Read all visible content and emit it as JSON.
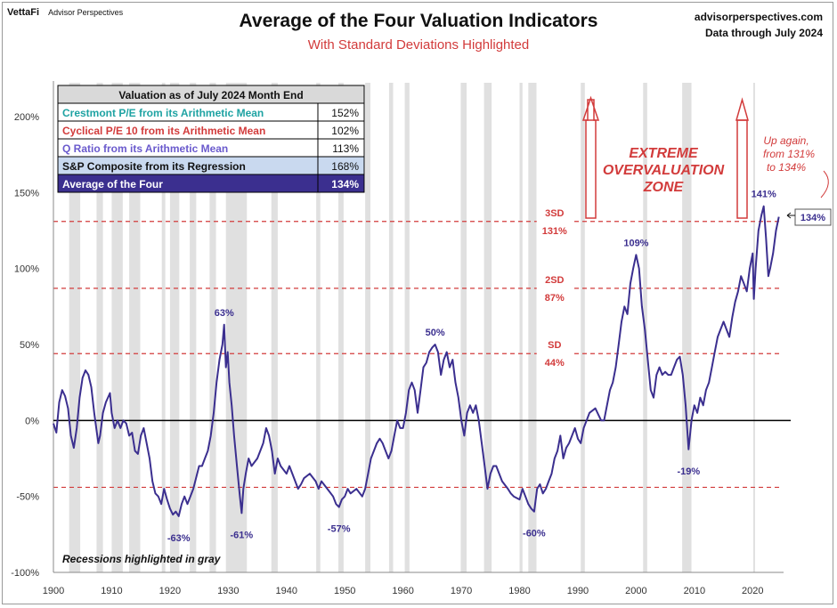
{
  "header": {
    "brand": "VettaFi",
    "brand_sub": "Advisor Perspectives",
    "title": "Average of the Four Valuation Indicators",
    "subtitle": "With Standard Deviations Highlighted",
    "source_site": "advisorperspectives.com",
    "source_date": "Data through July 2024"
  },
  "table": {
    "header": "Valuation as of July 2024 Month End",
    "rows": [
      {
        "label": "Crestmont P/E from its Arithmetic Mean",
        "value": "152%",
        "color": "#1fa3a3",
        "bg": "#ffffff"
      },
      {
        "label": "Cyclical P/E 10 from its Arithmetic Mean",
        "value": "102%",
        "color": "#d23b3b",
        "bg": "#ffffff"
      },
      {
        "label": "Q Ratio from its Arithmetic Mean",
        "value": "113%",
        "color": "#6a5acd",
        "bg": "#ffffff"
      },
      {
        "label": "S&P Composite from its Regression",
        "value": "168%",
        "color": "#111111",
        "bg": "#c9d9ef"
      },
      {
        "label": "Average of the Four",
        "value": "134%",
        "color": "#ffffff",
        "bg": "#3b2f8f"
      }
    ]
  },
  "annotations": {
    "zone": [
      "EXTREME",
      "OVERVALUATION",
      "ZONE"
    ],
    "up_again": [
      "Up again,",
      "from 131%",
      "to 134%"
    ],
    "recessions_note": "Recessions highlighted in gray",
    "current_label": "134%"
  },
  "colors": {
    "line": "#3b2f8f",
    "sd": "#d23b3b",
    "recession": "#e0e0e0",
    "zero": "#000000",
    "grid_text": "#333333"
  },
  "chart_data": {
    "type": "line",
    "xlim": [
      1900,
      2025
    ],
    "ylim": [
      -100,
      200
    ],
    "x_ticks": [
      "1900",
      "1910",
      "1920",
      "1930",
      "1940",
      "1950",
      "1960",
      "1970",
      "1980",
      "1990",
      "2000",
      "2010",
      "2020"
    ],
    "y_ticks": [
      "200%",
      "150%",
      "100%",
      "50%",
      "0%",
      "-50%",
      "-100%"
    ],
    "sd_lines": [
      {
        "y": 131,
        "label1": "3SD",
        "label2": "131%"
      },
      {
        "y": 87,
        "label1": "2SD",
        "label2": "87%"
      },
      {
        "y": 44,
        "label1": "SD",
        "label2": "44%"
      },
      {
        "y": -44,
        "label1": "",
        "label2": ""
      }
    ],
    "recessions": [
      [
        1902.7,
        1904.6
      ],
      [
        1907.4,
        1908.5
      ],
      [
        1910.0,
        1911.9
      ],
      [
        1913.0,
        1914.9
      ],
      [
        1918.6,
        1919.2
      ],
      [
        1920.0,
        1921.6
      ],
      [
        1923.4,
        1924.5
      ],
      [
        1926.8,
        1927.9
      ],
      [
        1929.6,
        1933.2
      ],
      [
        1937.4,
        1938.5
      ],
      [
        1945.1,
        1945.8
      ],
      [
        1948.9,
        1949.8
      ],
      [
        1953.5,
        1954.4
      ],
      [
        1957.6,
        1958.3
      ],
      [
        1960.3,
        1961.1
      ],
      [
        1969.9,
        1970.9
      ],
      [
        1973.9,
        1975.2
      ],
      [
        1980.0,
        1980.5
      ],
      [
        1981.5,
        1982.9
      ],
      [
        1990.5,
        1991.2
      ],
      [
        2001.2,
        2001.9
      ],
      [
        2007.9,
        2009.5
      ],
      [
        2020.1,
        2020.4
      ]
    ],
    "series": [
      {
        "values": [
          [
            1900,
            -2
          ],
          [
            1900.5,
            -8
          ],
          [
            1901,
            12
          ],
          [
            1901.5,
            20
          ],
          [
            1902,
            16
          ],
          [
            1902.5,
            8
          ],
          [
            1903,
            -10
          ],
          [
            1903.5,
            -18
          ],
          [
            1904,
            -5
          ],
          [
            1904.5,
            15
          ],
          [
            1905,
            28
          ],
          [
            1905.5,
            33
          ],
          [
            1906,
            30
          ],
          [
            1906.5,
            22
          ],
          [
            1907,
            5
          ],
          [
            1907.7,
            -15
          ],
          [
            1908,
            -10
          ],
          [
            1908.5,
            5
          ],
          [
            1909,
            12
          ],
          [
            1909.7,
            18
          ],
          [
            1910,
            5
          ],
          [
            1910.5,
            -5
          ],
          [
            1911,
            0
          ],
          [
            1911.5,
            -5
          ],
          [
            1912,
            0
          ],
          [
            1912.5,
            -2
          ],
          [
            1913,
            -10
          ],
          [
            1913.5,
            -8
          ],
          [
            1914,
            -20
          ],
          [
            1914.5,
            -22
          ],
          [
            1915,
            -10
          ],
          [
            1915.5,
            -5
          ],
          [
            1916,
            -15
          ],
          [
            1916.5,
            -25
          ],
          [
            1917,
            -40
          ],
          [
            1917.5,
            -48
          ],
          [
            1918,
            -50
          ],
          [
            1918.5,
            -55
          ],
          [
            1919,
            -45
          ],
          [
            1919.5,
            -52
          ],
          [
            1920,
            -58
          ],
          [
            1920.5,
            -62
          ],
          [
            1921,
            -60
          ],
          [
            1921.5,
            -63
          ],
          [
            1922,
            -55
          ],
          [
            1922.5,
            -50
          ],
          [
            1923,
            -55
          ],
          [
            1923.5,
            -50
          ],
          [
            1924,
            -45
          ],
          [
            1925,
            -30
          ],
          [
            1925.5,
            -30
          ],
          [
            1926,
            -25
          ],
          [
            1926.5,
            -20
          ],
          [
            1927,
            -10
          ],
          [
            1927.5,
            5
          ],
          [
            1928,
            25
          ],
          [
            1928.5,
            40
          ],
          [
            1929,
            50
          ],
          [
            1929.3,
            63
          ],
          [
            1929.6,
            35
          ],
          [
            1929.9,
            45
          ],
          [
            1930.2,
            25
          ],
          [
            1930.6,
            10
          ],
          [
            1931,
            -10
          ],
          [
            1931.5,
            -30
          ],
          [
            1932,
            -50
          ],
          [
            1932.3,
            -61
          ],
          [
            1932.6,
            -45
          ],
          [
            1933,
            -35
          ],
          [
            1933.5,
            -25
          ],
          [
            1934,
            -30
          ],
          [
            1935,
            -25
          ],
          [
            1935.5,
            -20
          ],
          [
            1936,
            -15
          ],
          [
            1936.5,
            -5
          ],
          [
            1937,
            -10
          ],
          [
            1937.5,
            -20
          ],
          [
            1938,
            -35
          ],
          [
            1938.5,
            -25
          ],
          [
            1939,
            -30
          ],
          [
            1940,
            -35
          ],
          [
            1940.5,
            -30
          ],
          [
            1941,
            -35
          ],
          [
            1942,
            -45
          ],
          [
            1942.5,
            -42
          ],
          [
            1943,
            -38
          ],
          [
            1944,
            -35
          ],
          [
            1945,
            -40
          ],
          [
            1945.5,
            -45
          ],
          [
            1946,
            -40
          ],
          [
            1947,
            -45
          ],
          [
            1948,
            -50
          ],
          [
            1948.5,
            -55
          ],
          [
            1949,
            -57
          ],
          [
            1949.5,
            -52
          ],
          [
            1950,
            -50
          ],
          [
            1950.5,
            -45
          ],
          [
            1951,
            -48
          ],
          [
            1952,
            -45
          ],
          [
            1953,
            -50
          ],
          [
            1953.5,
            -45
          ],
          [
            1954,
            -35
          ],
          [
            1954.5,
            -25
          ],
          [
            1955,
            -20
          ],
          [
            1955.5,
            -15
          ],
          [
            1956,
            -12
          ],
          [
            1956.5,
            -15
          ],
          [
            1957,
            -20
          ],
          [
            1957.5,
            -25
          ],
          [
            1958,
            -20
          ],
          [
            1958.5,
            -10
          ],
          [
            1959,
            0
          ],
          [
            1959.5,
            -5
          ],
          [
            1960,
            -5
          ],
          [
            1960.5,
            5
          ],
          [
            1961,
            20
          ],
          [
            1961.5,
            25
          ],
          [
            1962,
            20
          ],
          [
            1962.5,
            5
          ],
          [
            1963,
            20
          ],
          [
            1963.5,
            35
          ],
          [
            1964,
            38
          ],
          [
            1964.5,
            45
          ],
          [
            1965,
            48
          ],
          [
            1965.5,
            50
          ],
          [
            1966,
            45
          ],
          [
            1966.5,
            30
          ],
          [
            1967,
            40
          ],
          [
            1967.5,
            45
          ],
          [
            1968,
            35
          ],
          [
            1968.5,
            40
          ],
          [
            1969,
            25
          ],
          [
            1969.5,
            15
          ],
          [
            1970,
            0
          ],
          [
            1970.5,
            -10
          ],
          [
            1971,
            5
          ],
          [
            1971.5,
            10
          ],
          [
            1972,
            5
          ],
          [
            1972.5,
            10
          ],
          [
            1973,
            0
          ],
          [
            1973.5,
            -15
          ],
          [
            1974,
            -30
          ],
          [
            1974.5,
            -45
          ],
          [
            1975,
            -35
          ],
          [
            1975.5,
            -30
          ],
          [
            1976,
            -30
          ],
          [
            1976.5,
            -35
          ],
          [
            1977,
            -40
          ],
          [
            1978,
            -45
          ],
          [
            1978.5,
            -48
          ],
          [
            1979,
            -50
          ],
          [
            1980,
            -52
          ],
          [
            1980.5,
            -45
          ],
          [
            1981,
            -50
          ],
          [
            1981.5,
            -55
          ],
          [
            1982,
            -58
          ],
          [
            1982.5,
            -60
          ],
          [
            1983,
            -45
          ],
          [
            1983.5,
            -42
          ],
          [
            1984,
            -48
          ],
          [
            1984.5,
            -45
          ],
          [
            1985,
            -40
          ],
          [
            1985.5,
            -35
          ],
          [
            1986,
            -25
          ],
          [
            1986.5,
            -20
          ],
          [
            1987,
            -10
          ],
          [
            1987.5,
            -25
          ],
          [
            1988,
            -18
          ],
          [
            1988.5,
            -15
          ],
          [
            1989,
            -10
          ],
          [
            1989.5,
            -5
          ],
          [
            1990,
            -12
          ],
          [
            1990.5,
            -15
          ],
          [
            1991,
            -5
          ],
          [
            1991.5,
            0
          ],
          [
            1992,
            5
          ],
          [
            1993,
            8
          ],
          [
            1994,
            0
          ],
          [
            1994.5,
            0
          ],
          [
            1995,
            10
          ],
          [
            1995.5,
            20
          ],
          [
            1996,
            25
          ],
          [
            1996.5,
            35
          ],
          [
            1997,
            50
          ],
          [
            1997.5,
            65
          ],
          [
            1998,
            75
          ],
          [
            1998.5,
            70
          ],
          [
            1999,
            90
          ],
          [
            1999.5,
            100
          ],
          [
            2000,
            109
          ],
          [
            2000.5,
            100
          ],
          [
            2001,
            75
          ],
          [
            2001.5,
            60
          ],
          [
            2002,
            40
          ],
          [
            2002.5,
            20
          ],
          [
            2003,
            15
          ],
          [
            2003.5,
            30
          ],
          [
            2004,
            35
          ],
          [
            2004.5,
            30
          ],
          [
            2005,
            32
          ],
          [
            2005.5,
            30
          ],
          [
            2006,
            30
          ],
          [
            2006.5,
            35
          ],
          [
            2007,
            40
          ],
          [
            2007.5,
            42
          ],
          [
            2008,
            30
          ],
          [
            2008.5,
            10
          ],
          [
            2009,
            -19
          ],
          [
            2009.5,
            0
          ],
          [
            2010,
            10
          ],
          [
            2010.5,
            5
          ],
          [
            2011,
            15
          ],
          [
            2011.5,
            10
          ],
          [
            2012,
            20
          ],
          [
            2012.5,
            25
          ],
          [
            2013,
            35
          ],
          [
            2013.5,
            45
          ],
          [
            2014,
            55
          ],
          [
            2014.5,
            60
          ],
          [
            2015,
            65
          ],
          [
            2015.5,
            60
          ],
          [
            2016,
            55
          ],
          [
            2016.5,
            68
          ],
          [
            2017,
            78
          ],
          [
            2017.5,
            85
          ],
          [
            2018,
            95
          ],
          [
            2018.5,
            90
          ],
          [
            2019,
            85
          ],
          [
            2019.5,
            100
          ],
          [
            2020,
            110
          ],
          [
            2020.2,
            80
          ],
          [
            2020.5,
            100
          ],
          [
            2021,
            125
          ],
          [
            2021.5,
            135
          ],
          [
            2021.9,
            141
          ],
          [
            2022.3,
            120
          ],
          [
            2022.7,
            95
          ],
          [
            2023,
            100
          ],
          [
            2023.5,
            110
          ],
          [
            2024,
            125
          ],
          [
            2024.5,
            134
          ]
        ]
      }
    ],
    "labels": [
      {
        "x": 1929.3,
        "y": 63,
        "text": "63%",
        "pos": "above"
      },
      {
        "x": 1921.5,
        "y": -63,
        "text": "-63%",
        "pos": "below"
      },
      {
        "x": 1932.3,
        "y": -61,
        "text": "-61%",
        "pos": "below"
      },
      {
        "x": 1949,
        "y": -57,
        "text": "-57%",
        "pos": "below"
      },
      {
        "x": 1965.5,
        "y": 50,
        "text": "50%",
        "pos": "above"
      },
      {
        "x": 1982.5,
        "y": -60,
        "text": "-60%",
        "pos": "below"
      },
      {
        "x": 2000,
        "y": 109,
        "text": "109%",
        "pos": "above"
      },
      {
        "x": 2009,
        "y": -19,
        "text": "-19%",
        "pos": "below"
      },
      {
        "x": 2021.9,
        "y": 141,
        "text": "141%",
        "pos": "above"
      }
    ]
  }
}
